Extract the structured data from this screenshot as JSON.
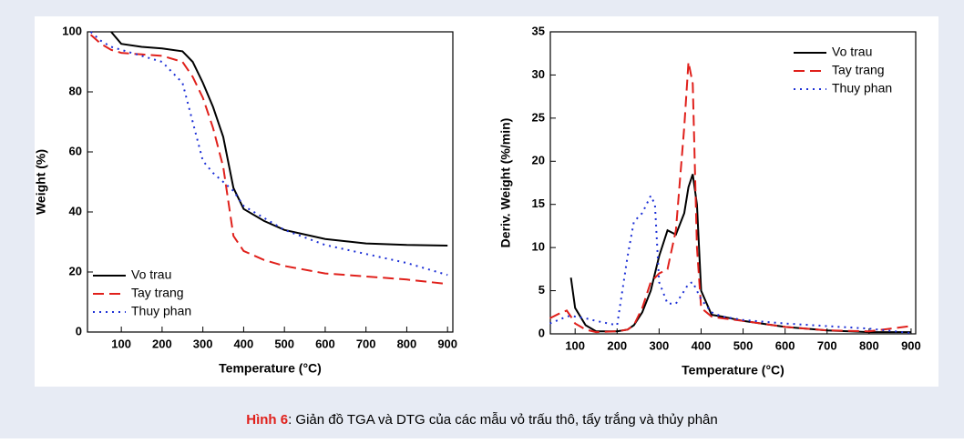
{
  "chart_data": [
    {
      "type": "line",
      "xlabel": "Temperature (°C)",
      "ylabel": "Weight (%)",
      "x": [
        25,
        50,
        75,
        100,
        150,
        200,
        250,
        275,
        300,
        325,
        350,
        375,
        400,
        450,
        500,
        600,
        700,
        800,
        900
      ],
      "series": [
        {
          "name": "Vo trau",
          "color": "#000000",
          "line_style": "solid",
          "values": [
            null,
            null,
            100,
            96,
            95,
            94.5,
            93.5,
            90,
            83,
            75,
            65,
            48,
            41,
            37,
            34,
            31,
            29.5,
            29,
            28.8
          ]
        },
        {
          "name": "Tay trang",
          "color": "#e0201b",
          "line_style": "dashed",
          "values": [
            99,
            96,
            94,
            93,
            92.5,
            92,
            90,
            85,
            78,
            68,
            55,
            32,
            27,
            24,
            22,
            19.5,
            18.5,
            17.5,
            16
          ]
        },
        {
          "name": "Thuy phan",
          "color": "#1c2fd6",
          "line_style": "dotted",
          "values": [
            100,
            97,
            95,
            94,
            92,
            90,
            83,
            70,
            57,
            53,
            50,
            47,
            42,
            38,
            34,
            29,
            26,
            23,
            19
          ]
        }
      ],
      "xlim": [
        17,
        913
      ],
      "ylim": [
        0,
        100
      ],
      "xticks": [
        100,
        200,
        300,
        400,
        500,
        600,
        700,
        800,
        900
      ],
      "yticks": [
        0,
        20,
        40,
        60,
        80,
        100
      ],
      "legend": "lower left"
    },
    {
      "type": "line",
      "xlabel": "Temperature (°C)",
      "ylabel": "Deriv. Weight (%/min)",
      "x": [
        40,
        60,
        80,
        90,
        100,
        125,
        150,
        200,
        225,
        240,
        260,
        280,
        290,
        300,
        320,
        340,
        360,
        370,
        380,
        390,
        400,
        425,
        450,
        500,
        600,
        700,
        800,
        900
      ],
      "series": [
        {
          "name": "Vo trau",
          "color": "#000000",
          "line_style": "solid",
          "values": [
            null,
            null,
            null,
            6.5,
            3,
            1,
            0.3,
            0.3,
            0.5,
            1,
            2.5,
            5,
            7,
            9,
            12,
            11.5,
            14,
            17,
            18.5,
            15,
            5,
            2.2,
            2,
            1.5,
            0.8,
            0.4,
            0.2,
            0.2
          ]
        },
        {
          "name": "Tay trang",
          "color": "#e0201b",
          "line_style": "dashed",
          "values": [
            1.8,
            2.3,
            2.7,
            2,
            1.2,
            0.5,
            0.2,
            0.3,
            0.5,
            1,
            3,
            6,
            6.5,
            7,
            7.5,
            12,
            24,
            31.5,
            29,
            10,
            3,
            2,
            1.8,
            1.5,
            0.8,
            0.4,
            0.3,
            0.9
          ]
        },
        {
          "name": "Thuy phan",
          "color": "#1c2fd6",
          "line_style": "dotted",
          "values": [
            1.2,
            1.6,
            2,
            2.1,
            2,
            1.8,
            1.5,
            1,
            9,
            13,
            14,
            16,
            15,
            6,
            3.5,
            3.5,
            5,
            5.8,
            6,
            5,
            4,
            2.5,
            2,
            1.6,
            1.2,
            0.9,
            0.6,
            0.1
          ]
        }
      ],
      "xlim": [
        41,
        911
      ],
      "ylim": [
        0,
        35
      ],
      "xticks": [
        100,
        200,
        300,
        400,
        500,
        600,
        700,
        800,
        900
      ],
      "yticks": [
        0,
        5,
        10,
        15,
        20,
        25,
        30,
        35
      ],
      "legend": "upper right"
    }
  ],
  "caption": {
    "label": "Hình 6",
    "text": ": Giản đồ TGA và DTG của các mẫu vỏ trấu thô, tẩy trắng và thủy phân"
  }
}
